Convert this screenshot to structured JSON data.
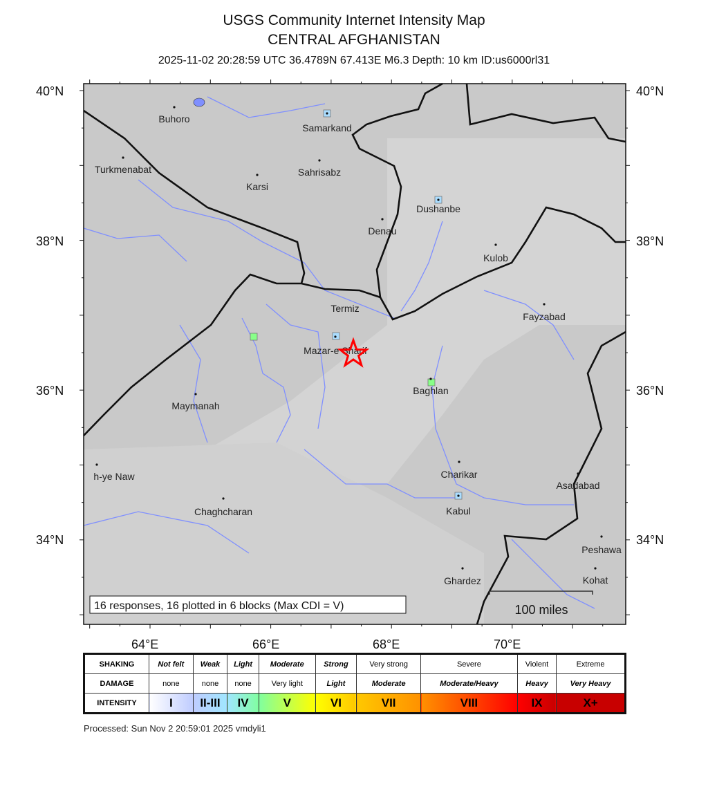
{
  "header": {
    "title": "USGS Community Internet Intensity Map",
    "region": "CENTRAL AFGHANISTAN",
    "event_info": "2025-11-02 20:28:59 UTC 36.4789N 67.413E M6.3 Depth: 10 km ID:us6000rl31"
  },
  "map": {
    "lat_labels": [
      "40°N",
      "38°N",
      "36°N",
      "34°N"
    ],
    "lon_labels": [
      "64°E",
      "66°E",
      "68°E",
      "70°E"
    ],
    "cities": [
      "Buhoro",
      "Turkmenabat",
      "Karsi",
      "Samarkand",
      "Sahrisabz",
      "Dushanbe",
      "Denau",
      "Kulob",
      "Termiz",
      "Fayzabad",
      "Mazar-e Sharif",
      "Baghlan",
      "Maymanah",
      "Charikar",
      "h-ye Naw",
      "Asadabad",
      "Chaghcharan",
      "Kabul",
      "Peshawa",
      "Ghardez",
      "Kohat"
    ],
    "responses_note": "16 responses, 16 plotted in 6 blocks (Max CDI = V)",
    "scale_label": "100 miles",
    "epicenter_icon": "red-star-icon",
    "colors": {
      "land": "#c9c9c9",
      "rivers": "#7f8fff",
      "borders": "#111111",
      "epicenter": "#ff0000",
      "cdi_II_III": "#aaddff",
      "cdi_V": "#88ff88"
    }
  },
  "legend": {
    "row_headers": [
      "SHAKING",
      "DAMAGE",
      "INTENSITY"
    ],
    "shaking": [
      "Not felt",
      "Weak",
      "Light",
      "Moderate",
      "Strong",
      "Very strong",
      "Severe",
      "Violent",
      "Extreme"
    ],
    "damage": [
      "none",
      "none",
      "none",
      "Very light",
      "Light",
      "Moderate",
      "Moderate/Heavy",
      "Heavy",
      "Very Heavy"
    ],
    "intensity": [
      "I",
      "II-III",
      "IV",
      "V",
      "VI",
      "VII",
      "VIII",
      "IX",
      "X+"
    ],
    "intensity_colors": [
      "#ffffff",
      "#bfccff",
      "#a0e6ff",
      "#80ffa0",
      "#ffff00",
      "#ffc800",
      "#ff9100",
      "#ff0000",
      "#c80000"
    ]
  },
  "footer": {
    "processed": "Processed: Sun Nov  2 20:59:01 2025 vmdyli1"
  }
}
